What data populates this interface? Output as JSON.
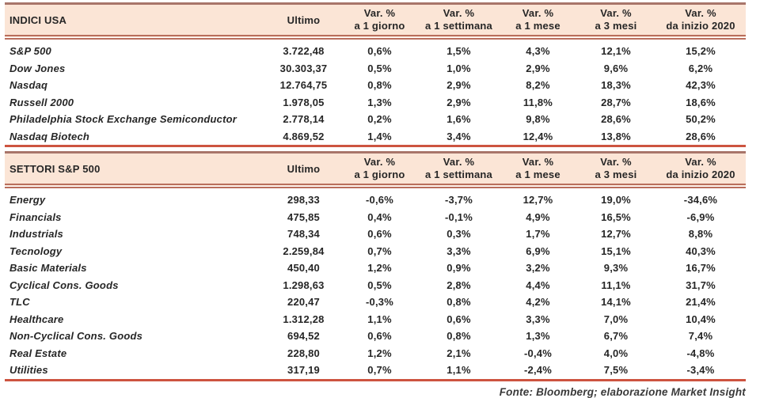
{
  "colors": {
    "header_bg": "#fbe5d6",
    "header_border_top": "#a8756a",
    "header_border_double": "#b96e5c",
    "table_bottom_line": "#cd5440",
    "text": "#262626"
  },
  "footer": "Fonte: Bloomberg; elaborazione Market Insight",
  "tables": [
    {
      "title": "INDICI USA",
      "ultimo_header": "Ultimo",
      "var_headers": [
        {
          "line1": "Var. %",
          "line2": "a 1 giorno"
        },
        {
          "line1": "Var. %",
          "line2": "a 1 settimana"
        },
        {
          "line1": "Var. %",
          "line2": "a 1 mese"
        },
        {
          "line1": "Var. %",
          "line2": "a 3 mesi"
        },
        {
          "line1": "Var. %",
          "line2": "da inizio 2020"
        }
      ],
      "rows": [
        {
          "name": "S&P 500",
          "ultimo": "3.722,48",
          "values": [
            "0,6%",
            "1,5%",
            "4,3%",
            "12,1%",
            "15,2%"
          ]
        },
        {
          "name": "Dow Jones",
          "ultimo": "30.303,37",
          "values": [
            "0,5%",
            "1,0%",
            "2,9%",
            "9,6%",
            "6,2%"
          ]
        },
        {
          "name": "Nasdaq",
          "ultimo": "12.764,75",
          "values": [
            "0,8%",
            "2,9%",
            "8,2%",
            "18,3%",
            "42,3%"
          ]
        },
        {
          "name": "Russell 2000",
          "ultimo": "1.978,05",
          "values": [
            "1,3%",
            "2,9%",
            "11,8%",
            "28,7%",
            "18,6%"
          ]
        },
        {
          "name": "Philadelphia Stock Exchange Semiconductor",
          "ultimo": "2.778,14",
          "values": [
            "0,2%",
            "1,6%",
            "9,8%",
            "28,6%",
            "50,2%"
          ]
        },
        {
          "name": "Nasdaq Biotech",
          "ultimo": "4.869,52",
          "values": [
            "1,4%",
            "3,4%",
            "12,4%",
            "13,8%",
            "28,6%"
          ]
        }
      ]
    },
    {
      "title": "SETTORI S&P 500",
      "ultimo_header": "Ultimo",
      "var_headers": [
        {
          "line1": "Var. %",
          "line2": "a 1 giorno"
        },
        {
          "line1": "Var. %",
          "line2": "a 1 settimana"
        },
        {
          "line1": "Var. %",
          "line2": "a 1 mese"
        },
        {
          "line1": "Var. %",
          "line2": "a 3 mesi"
        },
        {
          "line1": "Var. %",
          "line2": "da inizio 2020"
        }
      ],
      "rows": [
        {
          "name": "Energy",
          "ultimo": "298,33",
          "values": [
            "-0,6%",
            "-3,7%",
            "12,7%",
            "19,0%",
            "-34,6%"
          ]
        },
        {
          "name": "Financials",
          "ultimo": "475,85",
          "values": [
            "0,4%",
            "-0,1%",
            "4,9%",
            "16,5%",
            "-6,9%"
          ]
        },
        {
          "name": "Industrials",
          "ultimo": "748,34",
          "values": [
            "0,6%",
            "0,3%",
            "1,7%",
            "12,7%",
            "8,8%"
          ]
        },
        {
          "name": "Tecnology",
          "ultimo": "2.259,84",
          "values": [
            "0,7%",
            "3,3%",
            "6,9%",
            "15,1%",
            "40,3%"
          ]
        },
        {
          "name": "Basic Materials",
          "ultimo": "450,40",
          "values": [
            "1,2%",
            "0,9%",
            "3,2%",
            "9,3%",
            "16,7%"
          ]
        },
        {
          "name": "Cyclical Cons. Goods",
          "ultimo": "1.298,63",
          "values": [
            "0,5%",
            "2,8%",
            "4,4%",
            "11,1%",
            "31,7%"
          ]
        },
        {
          "name": "TLC",
          "ultimo": "220,47",
          "values": [
            "-0,3%",
            "0,8%",
            "4,2%",
            "14,1%",
            "21,4%"
          ]
        },
        {
          "name": "Healthcare",
          "ultimo": "1.312,28",
          "values": [
            "1,1%",
            "0,6%",
            "3,3%",
            "7,0%",
            "10,4%"
          ]
        },
        {
          "name": "Non-Cyclical Cons. Goods",
          "ultimo": "694,52",
          "values": [
            "0,6%",
            "0,8%",
            "1,3%",
            "6,7%",
            "7,4%"
          ]
        },
        {
          "name": "Real Estate",
          "ultimo": "228,80",
          "values": [
            "1,2%",
            "2,1%",
            "-0,4%",
            "4,0%",
            "-4,8%"
          ]
        },
        {
          "name": "Utilities",
          "ultimo": "317,19",
          "values": [
            "0,7%",
            "1,1%",
            "-2,4%",
            "7,5%",
            "-3,4%"
          ]
        }
      ]
    }
  ]
}
